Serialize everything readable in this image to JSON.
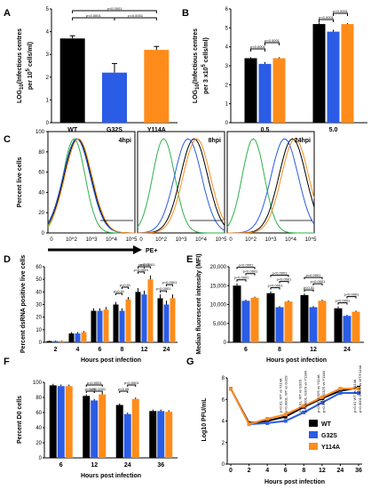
{
  "colors": {
    "WT": "#000000",
    "G32S": "#2b5ce6",
    "Y114A": "#ff8c1a",
    "control": "#2db34a"
  },
  "panel_letters": [
    "A",
    "B",
    "C",
    "D",
    "E",
    "F",
    "G"
  ],
  "chart_data": [
    {
      "id": "A",
      "type": "bar",
      "categories": [
        "WT",
        "G32S",
        "Y114A"
      ],
      "values": [
        3.7,
        2.2,
        3.2
      ],
      "errors": [
        0.12,
        0.4,
        0.15
      ],
      "ylim": [
        0,
        5
      ],
      "yticks": [
        0,
        1,
        2,
        3,
        4,
        5
      ],
      "ylabel": "LOG10(Infectious centres per 10^5 cells/ml)",
      "ylabel_parts": [
        "LOG",
        "10",
        "(Infectious centres",
        "per 10",
        "5",
        " cells/ml)"
      ],
      "annotations": [
        "p<0.0001",
        "p<0.0001",
        "p<0.0001"
      ]
    },
    {
      "id": "B",
      "type": "bar",
      "categories": [
        "0.5",
        "5.0"
      ],
      "series": [
        {
          "name": "WT",
          "values": [
            3.4,
            5.2
          ],
          "errors": [
            0.05,
            0.08
          ]
        },
        {
          "name": "G32S",
          "values": [
            3.1,
            4.8
          ],
          "errors": [
            0.1,
            0.1
          ]
        },
        {
          "name": "Y114A",
          "values": [
            3.4,
            5.2
          ],
          "errors": [
            0.05,
            0.05
          ]
        }
      ],
      "ylim": [
        0,
        6
      ],
      "yticks": [
        0,
        1,
        2,
        3,
        4,
        5,
        6
      ],
      "ylabel": "LOG10(Infectious centres per 3 x10^5 cells/ml)",
      "ylabel_parts": [
        "LOG",
        "10",
        "(Infectious centres",
        "per 3 x10",
        "5",
        " cells/ml)"
      ],
      "annotations": [
        "p<0.0001",
        "p<0.0001",
        "p<0.0001",
        "p<0.0001"
      ]
    },
    {
      "id": "C",
      "type": "line",
      "panels": [
        "4hpi",
        "8hpi",
        "24hpi"
      ],
      "ylabel": "Percent live cells",
      "xtick_labels": [
        "0",
        "10^2",
        "10^3",
        "10^4",
        "10^5"
      ],
      "yticks": [
        0,
        20,
        40,
        60,
        80,
        100
      ],
      "arrow_label": "PE+"
    },
    {
      "id": "D",
      "type": "bar",
      "categories": [
        "2",
        "4",
        "6",
        "8",
        "12",
        "24"
      ],
      "series": [
        {
          "name": "WT",
          "values": [
            1,
            7,
            25,
            30,
            40,
            35
          ],
          "errors": [
            0.3,
            1,
            2,
            2,
            3,
            3
          ]
        },
        {
          "name": "G32S",
          "values": [
            1,
            7,
            25,
            25,
            38,
            30
          ],
          "errors": [
            0.3,
            1,
            2,
            2,
            3,
            3
          ]
        },
        {
          "name": "Y114A",
          "values": [
            1,
            8,
            26,
            34,
            50,
            35
          ],
          "errors": [
            0.3,
            1,
            2,
            2,
            3,
            3
          ]
        }
      ],
      "ylim": [
        0,
        60
      ],
      "yticks": [
        0,
        10,
        20,
        30,
        40,
        50,
        60
      ],
      "ylabel": "Percent dsRNA positive live cells",
      "xlabel": "Hours post infection",
      "annotations": [
        "p<0.01",
        "p<0.01",
        "p<0.0001",
        "p<0.0001",
        "p<0.01",
        "p<0.0001",
        "p<0.0001"
      ]
    },
    {
      "id": "E",
      "type": "bar",
      "categories": [
        "6",
        "8",
        "12",
        "24"
      ],
      "series": [
        {
          "name": "WT",
          "values": [
            15000,
            13000,
            12500,
            9000
          ],
          "errors": [
            600,
            500,
            400,
            500
          ]
        },
        {
          "name": "G32S",
          "values": [
            11000,
            9300,
            9300,
            7000
          ],
          "errors": [
            300,
            300,
            300,
            300
          ]
        },
        {
          "name": "Y114A",
          "values": [
            11800,
            10800,
            11000,
            8100
          ],
          "errors": [
            300,
            300,
            300,
            300
          ]
        }
      ],
      "ylim": [
        0,
        20000
      ],
      "yticks": [
        0,
        5000,
        10000,
        15000,
        20000
      ],
      "ytick_labels": [
        "0",
        "5,000",
        "10,000",
        "15,000",
        "20,000"
      ],
      "ylabel": "Median fluorescent intensity (MFI)",
      "xlabel": "Hours post infection",
      "annotations": [
        "p<0.0001",
        "p<0.0001",
        "p<0.0001",
        "p<0.0001",
        "p<0.0001",
        "p<0.0001",
        "p<0.01",
        "p<0.0001",
        "p<0.0001",
        "p<0.0001",
        "p<0.0001"
      ]
    },
    {
      "id": "F",
      "type": "bar",
      "categories": [
        "6",
        "12",
        "24",
        "36"
      ],
      "series": [
        {
          "name": "WT",
          "values": [
            96,
            82,
            70,
            62
          ],
          "errors": [
            2,
            2,
            2,
            2
          ]
        },
        {
          "name": "G32S",
          "values": [
            95,
            76,
            58,
            62
          ],
          "errors": [
            2,
            2,
            2,
            2
          ]
        },
        {
          "name": "Y114A",
          "values": [
            95,
            84,
            78,
            61
          ],
          "errors": [
            2,
            2,
            2,
            2
          ]
        }
      ],
      "ylim": [
        0,
        100
      ],
      "yticks": [
        0,
        20,
        40,
        60,
        80,
        100
      ],
      "ylabel": "Percent D0 cells",
      "xlabel": "Hours post infection",
      "annotations": [
        "p<0.01",
        "p<0.0001",
        "p<0.0001",
        "p<0.05",
        "p<0.0001"
      ]
    },
    {
      "id": "G",
      "type": "line",
      "x": [
        0,
        2,
        4,
        6,
        8,
        12,
        24,
        36
      ],
      "xtick_labels": [
        "0",
        "2",
        "4",
        "6",
        "8",
        "12",
        "24",
        "36"
      ],
      "series": [
        {
          "name": "WT",
          "values": [
            7.0,
            3.8,
            4.0,
            4.4,
            5.3,
            6.1,
            6.8,
            7.1
          ]
        },
        {
          "name": "G32S",
          "values": [
            7.0,
            3.7,
            3.8,
            4.0,
            4.8,
            5.7,
            6.6,
            6.6
          ]
        },
        {
          "name": "Y114A",
          "values": [
            7.0,
            3.7,
            4.2,
            4.6,
            5.4,
            6.2,
            7.0,
            7.0
          ]
        }
      ],
      "ylim": [
        0,
        8
      ],
      "yticks": [
        0,
        2,
        4,
        6,
        8
      ],
      "ylabel": "Log10 PFU/mL",
      "xlabel": "Hours post infection",
      "legend": [
        "WT",
        "G32S",
        "Y114A"
      ],
      "annotations": [
        "p<0.01, WT vs Y114A",
        "p<0.0001, WT vs G32S",
        "p<0.01, WT vs G32S",
        "p<0.0001, G32S vs Y114A",
        "p<0.05, G32S vs Y114A",
        "p<0.0001, G32S vs Y114A",
        "p<0.01 WT vs Y114A",
        "p<0.0001 G32S vs WT/Y114A"
      ]
    }
  ]
}
